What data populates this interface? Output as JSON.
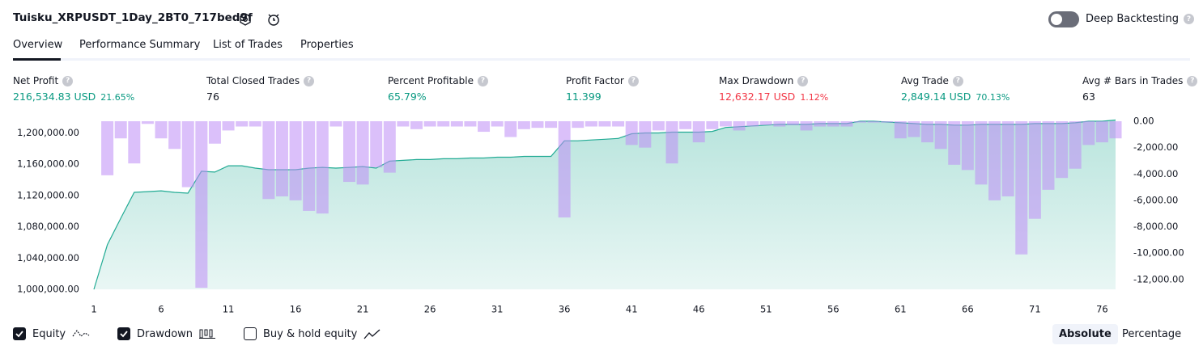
{
  "header": {
    "title": "Tuisku_XRPUSDT_1Day_2BT0_717bed9f",
    "deep_backtesting": "Deep Backtesting"
  },
  "tabs": [
    "Overview",
    "Performance Summary",
    "List of Trades",
    "Properties"
  ],
  "stats": [
    {
      "label": "Net Profit",
      "value": "216,534.83 USD",
      "sub": "21.65%",
      "color": "#089981"
    },
    {
      "label": "Total Closed Trades",
      "value": "76",
      "color": "#131722"
    },
    {
      "label": "Percent Profitable",
      "value": "65.79%",
      "color": "#089981"
    },
    {
      "label": "Profit Factor",
      "value": "11.399",
      "color": "#089981"
    },
    {
      "label": "Max Drawdown",
      "value": "12,632.17 USD",
      "sub": "1.12%",
      "color": "#f23645"
    },
    {
      "label": "Avg Trade",
      "value": "2,849.14 USD",
      "sub": "70.13%",
      "color": "#089981"
    },
    {
      "label": "Avg # Bars in Trades",
      "value": "63",
      "color": "#131722"
    }
  ],
  "chart_data": {
    "type": "combo",
    "x": [
      1,
      2,
      3,
      4,
      5,
      6,
      7,
      8,
      9,
      10,
      11,
      12,
      13,
      14,
      15,
      16,
      17,
      18,
      19,
      20,
      21,
      22,
      23,
      24,
      25,
      26,
      27,
      28,
      29,
      30,
      31,
      32,
      33,
      34,
      35,
      36,
      37,
      38,
      39,
      40,
      41,
      42,
      43,
      44,
      45,
      46,
      47,
      48,
      49,
      50,
      51,
      52,
      53,
      54,
      55,
      56,
      57,
      58,
      59,
      60,
      61,
      62,
      63,
      64,
      65,
      66,
      67,
      68,
      69,
      70,
      71,
      72,
      73,
      74,
      75,
      76,
      77
    ],
    "xlim": [
      1,
      77
    ],
    "xticks": [
      1,
      6,
      11,
      16,
      21,
      26,
      31,
      36,
      41,
      46,
      51,
      56,
      61,
      66,
      71,
      76
    ],
    "ylim": [
      1000000,
      1215000
    ],
    "yticks": [
      {
        "value": 1000000,
        "label": "1,000,000.00"
      },
      {
        "value": 1040000,
        "label": "1,040,000.00"
      },
      {
        "value": 1080000,
        "label": "1,080,000.00"
      },
      {
        "value": 1120000,
        "label": "1,120,000.00"
      },
      {
        "value": 1160000,
        "label": "1,160,000.00"
      },
      {
        "value": 1200000,
        "label": "1,200,000.00"
      }
    ],
    "y2lim": [
      -12750,
      0
    ],
    "y2ticks": [
      {
        "value": 0,
        "label": "0.00"
      },
      {
        "value": -2000,
        "label": "-2,000.00"
      },
      {
        "value": -4000,
        "label": "-4,000.00"
      },
      {
        "value": -6000,
        "label": "-6,000.00"
      },
      {
        "value": -8000,
        "label": "-8,000.00"
      },
      {
        "value": -10000,
        "label": "-10,000.00"
      },
      {
        "value": -12000,
        "label": "-12,000.00"
      }
    ],
    "series": [
      {
        "name": "Equity",
        "type": "line",
        "color": "#22ab94",
        "values": [
          1000000,
          1057000,
          1091000,
          1124000,
          1125000,
          1126000,
          1124000,
          1123000,
          1151000,
          1150000,
          1158000,
          1158000,
          1155000,
          1153000,
          1153000,
          1153000,
          1155000,
          1156000,
          1155000,
          1156000,
          1157000,
          1155000,
          1164000,
          1165000,
          1166000,
          1166000,
          1167000,
          1167000,
          1168000,
          1168000,
          1169000,
          1169000,
          1170000,
          1170000,
          1170000,
          1190000,
          1190000,
          1191000,
          1192000,
          1193000,
          1199000,
          1200000,
          1200000,
          1201000,
          1201000,
          1201000,
          1202000,
          1207000,
          1208000,
          1209000,
          1210000,
          1211000,
          1211000,
          1211000,
          1212000,
          1212000,
          1212000,
          1215000,
          1215000,
          1214000,
          1213000,
          1212000,
          1211000,
          1211000,
          1210000,
          1210000,
          1211000,
          1211000,
          1211000,
          1211000,
          1212000,
          1212000,
          1212000,
          1213000,
          1215000,
          1215000,
          1216535
        ]
      },
      {
        "name": "Drawdown",
        "type": "bar",
        "axis": "y2",
        "color": "rgba(190,140,245,0.55)",
        "values": [
          null,
          -4100,
          -1300,
          -3200,
          -200,
          -1300,
          -2100,
          -5000,
          -12632,
          -1700,
          -700,
          -400,
          -400,
          -5900,
          -5700,
          -6000,
          -6800,
          -7000,
          -400,
          -4600,
          -4800,
          -3500,
          -3900,
          -400,
          -600,
          -400,
          -400,
          -400,
          -400,
          -800,
          -400,
          -1200,
          -600,
          -500,
          -500,
          -7300,
          -500,
          -400,
          -400,
          -400,
          -1800,
          -2000,
          -700,
          -3200,
          -600,
          -1600,
          -600,
          -400,
          -700,
          -400,
          -300,
          -400,
          -300,
          -700,
          -400,
          -400,
          -400,
          -100,
          -100,
          -100,
          -1300,
          -1200,
          -1600,
          -2100,
          -3300,
          -3700,
          -4800,
          -6000,
          -5700,
          -10100,
          -7400,
          -5200,
          -4300,
          -3600,
          -1800,
          -1600,
          -1300
        ]
      }
    ]
  },
  "toggles": [
    {
      "label": "Equity",
      "checked": true
    },
    {
      "label": "Drawdown",
      "checked": true
    },
    {
      "label": "Buy & hold equity",
      "checked": false
    }
  ],
  "view_modes": [
    "Absolute",
    "Percentage"
  ]
}
